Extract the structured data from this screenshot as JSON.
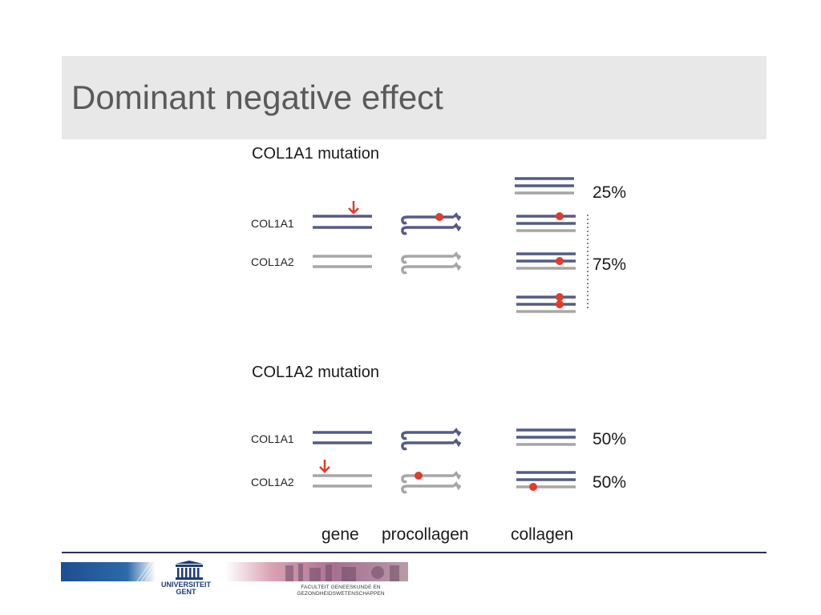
{
  "slide": {
    "title": "Dominant negative effect"
  },
  "colors": {
    "col1a1_strand": "#545b85",
    "col1a2_strand": "#a6a6a6",
    "mutation": "#e03b2d",
    "title_bar": "#e8e8e8",
    "footer_rule": "#2b2f5a"
  },
  "diagram": {
    "col1a1_mutation": {
      "heading": "COL1A1 mutation",
      "gene_labels": [
        "COL1A1",
        "COL1A2"
      ],
      "percent_normal": "25%",
      "percent_mutant": "75%"
    },
    "col1a2_mutation": {
      "heading": "COL1A2 mutation",
      "gene_labels": [
        "COL1A1",
        "COL1A2"
      ],
      "percent_normal": "50%",
      "percent_mutant": "50%"
    },
    "column_labels": [
      "gene",
      "procollagen",
      "collagen"
    ]
  },
  "footer": {
    "university": "UNIVERSITEIT GENT",
    "faculty": "FACULTEIT GENEESKUNDE EN GEZONDHEIDSWETENSCHAPPEN"
  }
}
